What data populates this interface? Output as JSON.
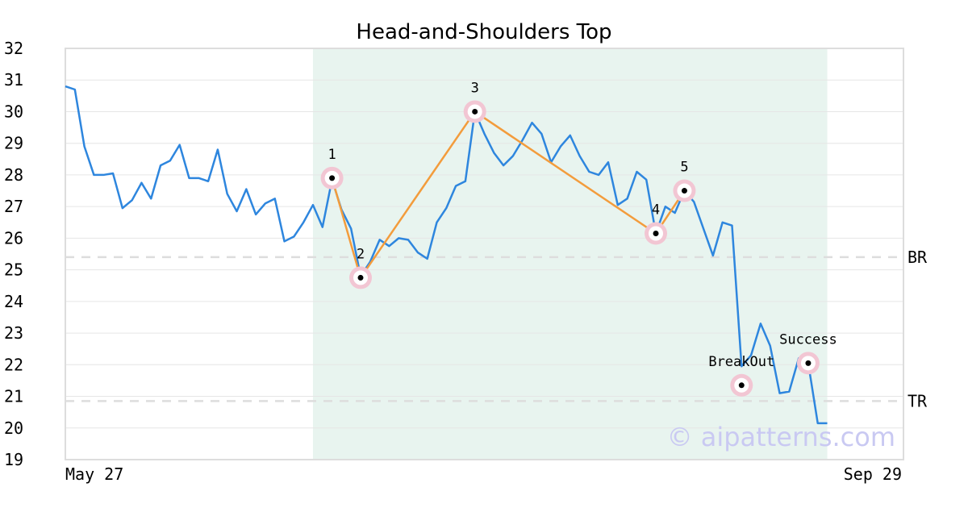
{
  "chart_data": {
    "type": "line",
    "title": "Head-and-Shoulders Top",
    "xlabel": "",
    "ylabel": "",
    "ylim": [
      19,
      32
    ],
    "yticks": [
      19,
      20,
      21,
      22,
      23,
      24,
      25,
      26,
      27,
      28,
      29,
      30,
      31,
      32
    ],
    "x_range": [
      0,
      88
    ],
    "x_tick_labels": [
      {
        "x": 0,
        "label": "May 27"
      },
      {
        "x": 88,
        "label": "Sep 29"
      }
    ],
    "grid": true,
    "colors": {
      "price": "#2e86de",
      "pattern": "#f39c3c",
      "highlight": "#e8f4ef",
      "marker_ring": "#f2c6d3",
      "reference": "#dddddd",
      "watermark": "#c9c9f2"
    },
    "highlight_range": [
      26,
      80
    ],
    "series": [
      {
        "values": [
          30.8,
          30.7,
          28.9,
          28.0,
          28.0,
          28.05,
          26.95,
          27.2,
          27.75,
          27.25,
          28.3,
          28.45,
          28.95,
          27.9,
          27.9,
          27.8,
          28.8,
          27.4,
          26.85,
          27.55,
          26.75,
          27.1,
          27.25,
          25.9,
          26.05,
          26.5,
          27.05,
          26.35,
          27.85,
          26.9,
          26.3,
          24.8,
          25.25,
          25.95,
          25.75,
          26.0,
          25.95,
          25.55,
          25.35,
          26.5,
          26.95,
          27.65,
          27.8,
          30.0,
          29.3,
          28.7,
          28.3,
          28.6,
          29.1,
          29.65,
          29.3,
          28.4,
          28.9,
          29.25,
          28.6,
          28.1,
          28.0,
          28.4,
          27.05,
          27.25,
          28.1,
          27.85,
          26.15,
          27.0,
          26.8,
          27.5,
          27.15,
          26.3,
          25.45,
          26.5,
          26.4,
          21.95,
          22.3,
          23.3,
          22.6,
          21.1,
          21.15,
          22.2,
          22.05,
          20.15,
          20.15
        ]
      }
    ],
    "pattern_points": [
      {
        "label": "1",
        "x": 28,
        "y": 27.9
      },
      {
        "label": "2",
        "x": 31,
        "y": 24.75
      },
      {
        "label": "3",
        "x": 43,
        "y": 30.0
      },
      {
        "label": "4",
        "x": 62,
        "y": 26.15
      },
      {
        "label": "5",
        "x": 65,
        "y": 27.5
      }
    ],
    "event_points": [
      {
        "label": "BreakOut",
        "x": 71,
        "y": 21.35
      },
      {
        "label": "Success",
        "x": 78,
        "y": 22.05
      }
    ],
    "reference_lines": [
      {
        "label": "BR",
        "y": 25.4
      },
      {
        "label": "TR",
        "y": 20.85
      }
    ],
    "watermark": "© aipatterns.com"
  }
}
